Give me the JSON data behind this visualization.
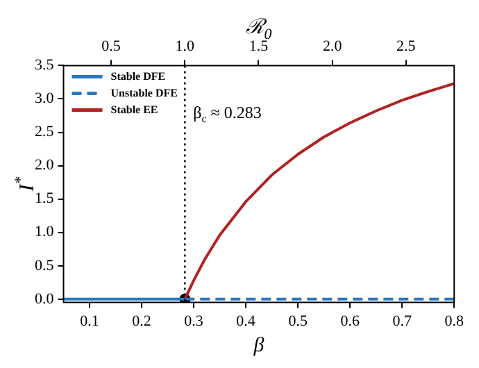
{
  "chart_data": {
    "type": "line",
    "xlabel": "β",
    "ylabel": "I$^{*}$",
    "x2label": "ℛ$_{0}$",
    "xlim": [
      0.05,
      0.8
    ],
    "xticks": [
      0.1,
      0.2,
      0.3,
      0.4,
      0.5,
      0.6,
      0.7,
      0.8
    ],
    "x2lim": [
      0.177,
      2.827
    ],
    "x2ticks": [
      {
        "value": 0.5,
        "label": "0.5"
      },
      {
        "value": 1.0,
        "label": "1.0"
      },
      {
        "value": 1.5,
        "label": "1.5"
      },
      {
        "value": 2.0,
        "label": "2.0"
      },
      {
        "value": 2.5,
        "label": "2.5"
      }
    ],
    "ylim": [
      -0.05,
      3.5
    ],
    "yticks": [
      {
        "value": 0,
        "label": "0.0"
      },
      {
        "value": 0.5,
        "label": "0.5"
      },
      {
        "value": 1,
        "label": "1.0"
      },
      {
        "value": 1.5,
        "label": "1.5"
      },
      {
        "value": 2,
        "label": "2.0"
      },
      {
        "value": 2.5,
        "label": "2.5"
      },
      {
        "value": 3,
        "label": "3.0"
      },
      {
        "value": 3.5,
        "label": "3.5"
      }
    ],
    "grid": false,
    "legend": "top left",
    "series": [
      {
        "name": "Stable DFE",
        "color": "#2878c0",
        "line_style": "solid",
        "x": [
          0.05,
          0.283
        ],
        "values": [
          0,
          0
        ]
      },
      {
        "name": "Unstable DFE",
        "color": "#2878c0",
        "line_style": "dashed",
        "x": [
          0.283,
          0.8
        ],
        "values": [
          0,
          0
        ]
      },
      {
        "name": "Stable EE",
        "color": "#b22222",
        "line_style": "solid",
        "x": [
          0.283,
          0.3,
          0.32,
          0.35,
          0.4,
          0.45,
          0.5,
          0.55,
          0.6,
          0.65,
          0.7,
          0.75,
          0.8
        ],
        "values": [
          0,
          0.28,
          0.58,
          0.96,
          1.46,
          1.86,
          2.17,
          2.43,
          2.64,
          2.82,
          2.98,
          3.11,
          3.23
        ]
      },
      {
        "type": "scatter",
        "color": "#000000",
        "marker": "circle",
        "x": [
          0.283
        ],
        "values": [
          0
        ]
      }
    ],
    "ref_lines": [
      {
        "axis": "x",
        "value": 0.283,
        "label": "β$_{c}$ ≈ 0.283",
        "color": "#000000",
        "line_style": "dotted"
      }
    ]
  }
}
